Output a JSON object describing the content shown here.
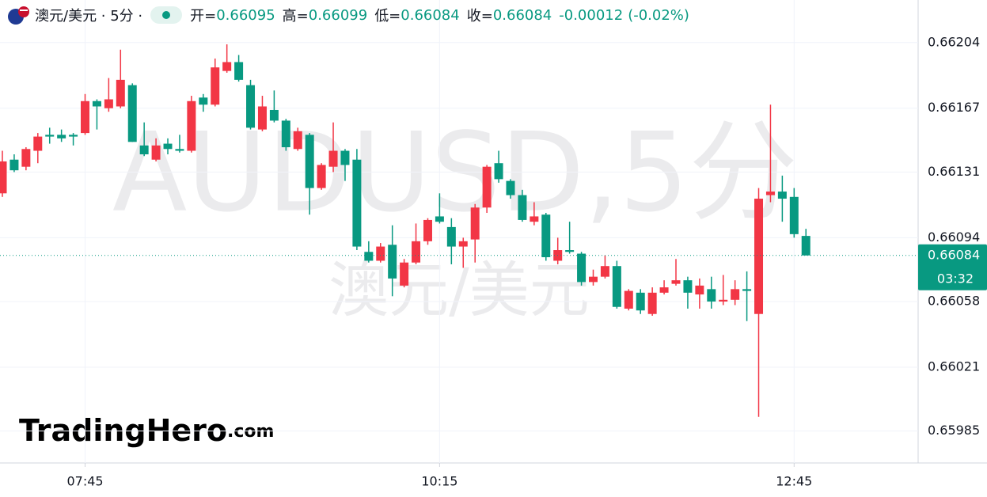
{
  "chart_data": {
    "type": "candlestick",
    "header": {
      "symbol": "澳元/美元 · 5分 ·",
      "open_label": "开=",
      "open": 0.66095,
      "high_label": "高=",
      "high": 0.66099,
      "low_label": "低=",
      "low": 0.66084,
      "close_label": "收=",
      "close": 0.66084,
      "change": -0.00012,
      "change_pct": "(-0.02%)"
    },
    "watermark": "AUDUSD,5分",
    "watermark_sub": "澳元/美元",
    "logo": "TradingHero",
    "logo_suffix": ".com",
    "up_color": "#f23645",
    "down_color": "#089981",
    "grid": true,
    "categories": [
      null,
      null,
      null,
      null,
      null,
      null,
      null,
      "07:45",
      null,
      null,
      null,
      null,
      null,
      null,
      null,
      null,
      null,
      null,
      null,
      null,
      null,
      null,
      null,
      null,
      null,
      null,
      null,
      null,
      null,
      null,
      null,
      null,
      null,
      null,
      null,
      null,
      null,
      "10:15",
      null,
      null,
      null,
      null,
      null,
      null,
      null,
      null,
      null,
      null,
      null,
      null,
      null,
      null,
      null,
      null,
      null,
      null,
      null,
      null,
      null,
      null,
      null,
      null,
      null,
      null,
      null,
      null,
      null,
      "12:45",
      null
    ],
    "open": [
      0.66119,
      0.66138,
      0.66134,
      0.66143,
      0.66152,
      0.66152,
      0.66152,
      0.66153,
      0.66171,
      0.66167,
      0.66168,
      0.6618,
      0.66146,
      0.66138,
      0.66147,
      0.66144,
      0.66143,
      0.66173,
      0.66169,
      0.66188,
      0.66193,
      0.6618,
      0.66155,
      0.66166,
      0.6616,
      0.66144,
      0.66152,
      0.66122,
      0.66134,
      0.66143,
      0.66138,
      0.66086,
      0.66081,
      0.6609,
      0.66067,
      0.6608,
      0.66092,
      0.66106,
      0.661,
      0.66089,
      0.66093,
      0.66111,
      0.66136,
      0.66126,
      0.66118,
      0.66103,
      0.66107,
      0.66081,
      0.66087,
      0.66085,
      0.66069,
      0.66072,
      0.66078,
      0.66054,
      0.66063,
      0.66051,
      0.66063,
      0.66068,
      0.6607,
      0.66062,
      0.66065,
      0.66058,
      0.66059,
      0.66065,
      0.66051,
      0.66118,
      0.6612,
      0.66117,
      0.66095
    ],
    "high": [
      0.66143,
      0.66141,
      0.66145,
      0.66153,
      0.66156,
      0.66155,
      0.66153,
      0.66175,
      0.66172,
      0.66184,
      0.662,
      0.66181,
      0.66159,
      0.6615,
      0.6615,
      0.66152,
      0.66174,
      0.66175,
      0.66195,
      0.66203,
      0.66197,
      0.66183,
      0.66174,
      0.66177,
      0.66161,
      0.66156,
      0.66153,
      0.66136,
      0.66159,
      0.66144,
      0.66144,
      0.66092,
      0.66091,
      0.66101,
      0.66082,
      0.66102,
      0.66105,
      0.66119,
      0.66105,
      0.66094,
      0.66113,
      0.66135,
      0.66143,
      0.66127,
      0.66121,
      0.66114,
      0.66108,
      0.66094,
      0.66103,
      0.66086,
      0.66076,
      0.66084,
      0.66081,
      0.66065,
      0.66065,
      0.66066,
      0.6607,
      0.66082,
      0.66072,
      0.66071,
      0.66072,
      0.66073,
      0.6607,
      0.66075,
      0.66122,
      0.66169,
      0.66129,
      0.66122,
      0.66099
    ],
    "low": [
      0.66117,
      0.66131,
      0.66132,
      0.66136,
      0.66147,
      0.66148,
      0.66146,
      0.66152,
      0.66155,
      0.66165,
      0.66167,
      0.66148,
      0.6614,
      0.66137,
      0.66141,
      0.66142,
      0.66142,
      0.66165,
      0.66168,
      0.66187,
      0.66182,
      0.66155,
      0.66154,
      0.66159,
      0.66143,
      0.66143,
      0.66107,
      0.66121,
      0.66131,
      0.66126,
      0.66087,
      0.6608,
      0.6608,
      0.66061,
      0.66066,
      0.66079,
      0.6609,
      0.66102,
      0.66079,
      0.66077,
      0.6608,
      0.66108,
      0.66125,
      0.66116,
      0.66103,
      0.66101,
      0.66081,
      0.66079,
      0.66085,
      0.66067,
      0.66067,
      0.66071,
      0.66054,
      0.66053,
      0.66051,
      0.6605,
      0.66062,
      0.66067,
      0.66054,
      0.66054,
      0.66054,
      0.66056,
      0.66056,
      0.66047,
      0.65993,
      0.66114,
      0.66103,
      0.66094,
      0.66084
    ],
    "close": [
      0.66137,
      0.66132,
      0.66144,
      0.66151,
      0.66151,
      0.6615,
      0.66151,
      0.66171,
      0.66168,
      0.66172,
      0.66183,
      0.66148,
      0.66141,
      0.66146,
      0.66144,
      0.66143,
      0.66171,
      0.66169,
      0.6619,
      0.66193,
      0.66183,
      0.66156,
      0.66168,
      0.6616,
      0.66145,
      0.66154,
      0.66122,
      0.66135,
      0.66143,
      0.66135,
      0.66089,
      0.66081,
      0.66089,
      0.66071,
      0.6608,
      0.66092,
      0.66104,
      0.66103,
      0.66089,
      0.66092,
      0.66111,
      0.66134,
      0.66127,
      0.66118,
      0.66104,
      0.66106,
      0.66083,
      0.66087,
      0.66086,
      0.66069,
      0.66072,
      0.66078,
      0.66055,
      0.66064,
      0.66053,
      0.66063,
      0.66066,
      0.6607,
      0.66063,
      0.66067,
      0.66058,
      0.66059,
      0.66065,
      0.66064,
      0.66116,
      0.6612,
      0.66116,
      0.66096,
      0.66084
    ],
    "ylim": [
      0.65967,
      0.66228
    ],
    "yticks": [
      0.66204,
      0.66167,
      0.66131,
      0.66094,
      0.66058,
      0.66021,
      0.65985
    ],
    "price_label": {
      "value": 0.66084,
      "timer": "03:32"
    }
  }
}
